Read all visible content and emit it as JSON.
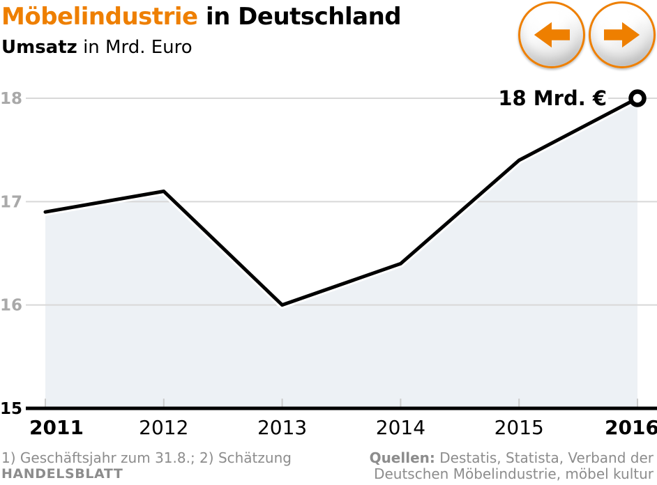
{
  "header": {
    "title_accent": "Möbelindustrie",
    "title_rest": "in Deutschland",
    "subtitle_bold": "Umsatz",
    "subtitle_rest": "in Mrd. Euro"
  },
  "nav": {
    "prev_icon": "arrow-left-icon",
    "next_icon": "arrow-right-icon"
  },
  "chart_data": {
    "type": "area",
    "title": "Möbelindustrie in Deutschland",
    "subtitle": "Umsatz in Mrd. Euro",
    "categories": [
      "2011",
      "2012",
      "2013",
      "2014",
      "2015",
      "2016"
    ],
    "values": [
      16.9,
      17.1,
      16.0,
      16.4,
      17.4,
      18.0
    ],
    "unit": "Mrd. Euro",
    "ylim": [
      15,
      18
    ],
    "yticks": [
      15,
      16,
      17,
      18
    ],
    "grid": "horizontal-light",
    "legend": "none",
    "emphasized_categories": [
      "2011",
      "2016"
    ],
    "annotation": {
      "text": "18 Mrd. €",
      "at_category": "2016",
      "at_value": 18
    },
    "last_point_marker": "open-circle"
  },
  "footer": {
    "footnote": "1) Geschäftsjahr zum 31.8.; 2) Schätzung",
    "brand": "HANDELSBLATT",
    "sources_label": "Quellen:",
    "sources_line1": "Destatis, Statista, Verband der",
    "sources_line2": "Deutschen Möbelindustrie, möbel kultur"
  },
  "colors": {
    "accent": "#ee7f00",
    "line": "#000000",
    "area_fill": "#edf1f5",
    "gridline": "#d8d8d8",
    "axis_tick": "#cccccc",
    "y_label_gray": "#a9a9a9",
    "footer_gray": "#8c8c8c",
    "background": "#ffffff"
  }
}
